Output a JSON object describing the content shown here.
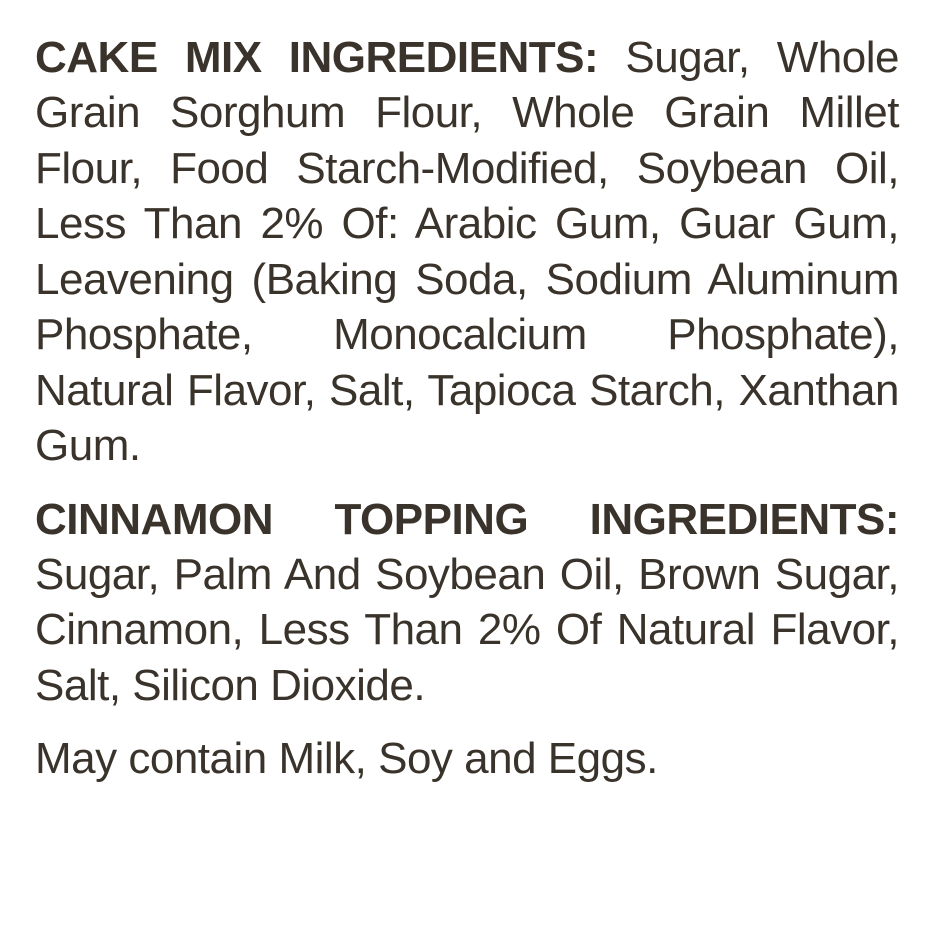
{
  "cakeMix": {
    "heading": "CAKE MIX INGREDIENTS:",
    "ingredients": "Sugar, Whole Grain Sorghum Flour, Whole Grain Millet Flour, Food Starch-Modified, Soybean Oil, Less Than 2% Of: Arabic Gum, Guar Gum, Leavening (Baking Soda, Sodium Aluminum Phosphate, Monocalcium Phosphate), Natural Flavor, Salt, Tapioca Starch, Xanthan Gum."
  },
  "cinnamonTopping": {
    "heading": "CINNAMON TOPPING INGREDIENTS:",
    "ingredients": "Sugar, Palm And Soybean Oil, Brown Sugar, Cinnamon, Less Than 2% Of Natural Flavor, Salt, Silicon Dioxide."
  },
  "allergen": {
    "text": "May contain Milk, Soy and Eggs."
  },
  "styling": {
    "textColor": "#3a332b",
    "backgroundColor": "#ffffff",
    "fontSize": 44,
    "lineHeight": 1.26,
    "headingWeight": 800,
    "bodyWeight": 400
  }
}
